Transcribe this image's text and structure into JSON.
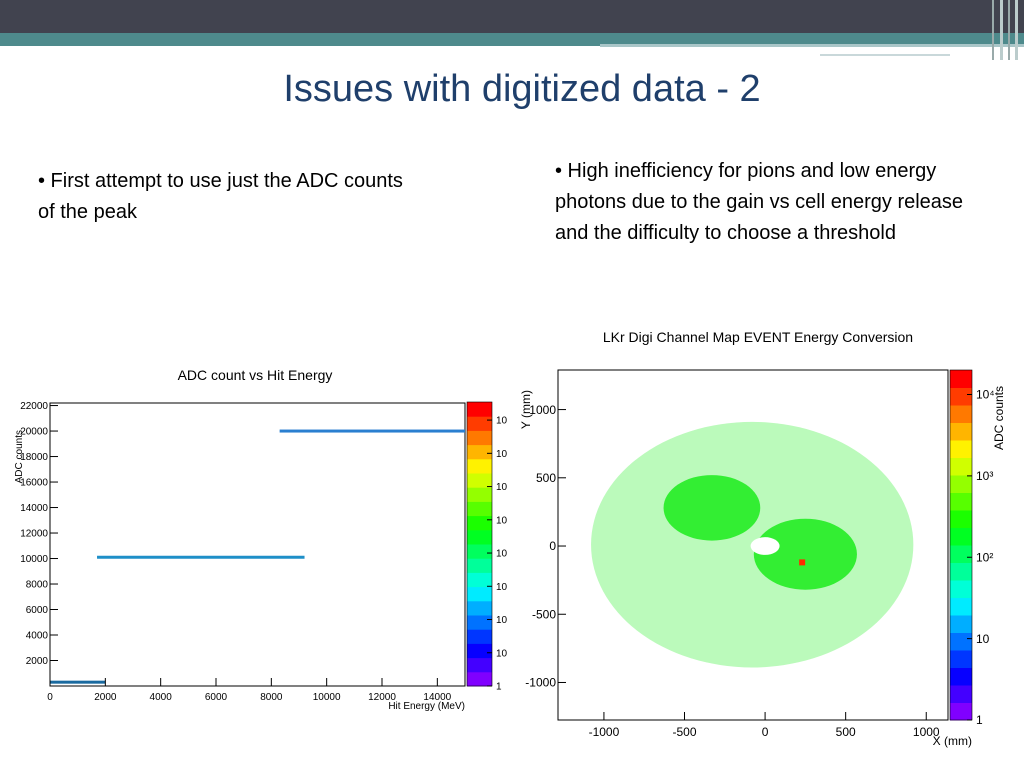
{
  "title": "Issues with digitized data - 2",
  "bullets": [
    "• First attempt to use just the ADC counts of the peak",
    "• High inefficiency for pions and low energy photons due to the gain vs cell energy release and the difficulty to choose a threshold"
  ],
  "chart_data": [
    {
      "type": "heatmap",
      "title": "ADC count vs Hit Energy",
      "xlabel": "Hit Energy (MeV)",
      "ylabel": "ADC counts",
      "xlim": [
        0,
        15000
      ],
      "ylim": [
        0,
        22200
      ],
      "xticks": [
        0,
        2000,
        4000,
        6000,
        8000,
        10000,
        12000,
        14000
      ],
      "yticks": [
        2000,
        4000,
        6000,
        8000,
        10000,
        12000,
        14000,
        16000,
        18000,
        20000,
        22000
      ],
      "log_z": true,
      "zlim": [
        1,
        350000000
      ],
      "zticks": [
        1,
        10,
        {
          "value": 100,
          "label": "10"
        },
        {
          "value": 1000,
          "label": "10"
        },
        {
          "value": 10000,
          "label": "10"
        },
        {
          "value": 100000,
          "label": "10"
        },
        {
          "value": 1000000,
          "label": "10"
        },
        {
          "value": 10000000,
          "label": "10"
        },
        {
          "value": 100000000,
          "label": "10"
        }
      ],
      "bands": [
        {
          "x": [
            1700,
            9200
          ],
          "y": 10100,
          "color": "#1e8fc8"
        },
        {
          "x": [
            8300,
            15000
          ],
          "y": 20000,
          "color": "#2a7fd0"
        },
        {
          "x": [
            0,
            2000
          ],
          "y": 300,
          "color": "#1a6aa0"
        }
      ]
    },
    {
      "type": "heatmap",
      "title": "LKr Digi Channel Map EVENT Energy Conversion",
      "xlabel": "X (mm)",
      "ylabel": "Y (mm)",
      "zlabel": "ADC counts",
      "xlim": [
        -1285,
        1135
      ],
      "ylim": [
        -1275,
        1290
      ],
      "xticks": [
        -1000,
        -500,
        0,
        500,
        1000
      ],
      "yticks": [
        -1000,
        -500,
        0,
        500,
        1000
      ],
      "log_z": true,
      "zlim": [
        1,
        20000
      ],
      "zticks": [
        1,
        10,
        {
          "value": 100,
          "label": "10²"
        },
        {
          "value": 1000,
          "label": "10³"
        },
        {
          "value": 10000,
          "label": "10⁴"
        }
      ],
      "clusters": [
        {
          "cx": -80,
          "cy": 10,
          "rx": 1000,
          "ry": 900,
          "color": "#3cf03c"
        },
        {
          "cx": -330,
          "cy": 280,
          "rx": 300,
          "ry": 240,
          "color": "#33ee33"
        },
        {
          "cx": 250,
          "cy": -60,
          "rx": 320,
          "ry": 260,
          "color": "#33ee33"
        },
        {
          "cx": 0,
          "cy": 0,
          "rx": 90,
          "ry": 65,
          "color": "#ffffff"
        }
      ],
      "cells": [
        {
          "x": 230,
          "y": -120,
          "color": "#ff2a00"
        }
      ]
    }
  ]
}
